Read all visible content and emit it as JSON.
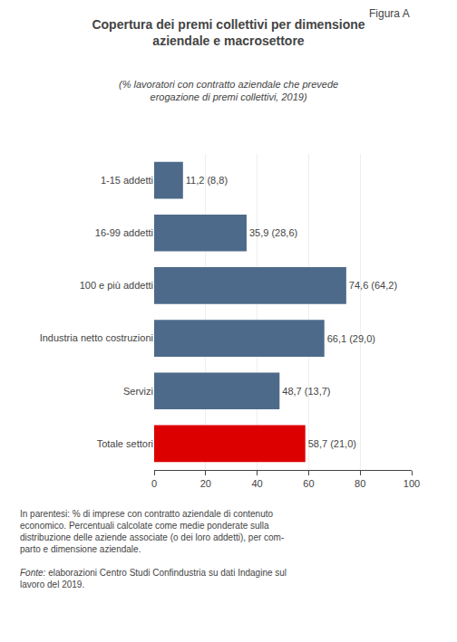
{
  "chart_data": {
    "type": "bar",
    "orientation": "horizontal",
    "title": "Copertura dei premi collettivi per dimensione\naziendale e macrosettore",
    "subtitle": "(% lavoratori con contratto aziendale che prevede\nerogazione di premi collettivi, 2019)",
    "annotations": [
      "Figura A",
      "In parentesi: % di imprese con contratto aziendale di contenuto\neconomico. Percentuali calcolate come medie ponderate sulla\ndistribuzione delle aziende associate (o dei loro addetti), per com-\nparto e dimensione aziendale.",
      "Fonte:",
      " elaborazioni Centro Studi Confindustria su dati Indagine sul\nlavoro del 2019."
    ],
    "categories": [
      "1-15 addetti",
      "16-99 addetti",
      "100 e più addetti",
      "Industria netto costruzioni",
      "Servizi",
      "Totale settori"
    ],
    "values": [
      11.2,
      35.9,
      74.6,
      66.1,
      48.7,
      58.7
    ],
    "value_labels": [
      "11,2 (8,8)",
      "35,9 (28,6)",
      "74,6 (64,2)",
      "66,1 (29,0)",
      "48,7 (13,7)",
      "58,7 (21,0)"
    ],
    "data_labels": true,
    "colors": [
      "#4d6a8a",
      "#4d6a8a",
      "#4d6a8a",
      "#4d6a8a",
      "#4d6a8a",
      "#dd0000"
    ],
    "xlim": [
      0,
      100
    ],
    "xticks": [
      0,
      20,
      40,
      60,
      80,
      100
    ],
    "grid": true
  }
}
